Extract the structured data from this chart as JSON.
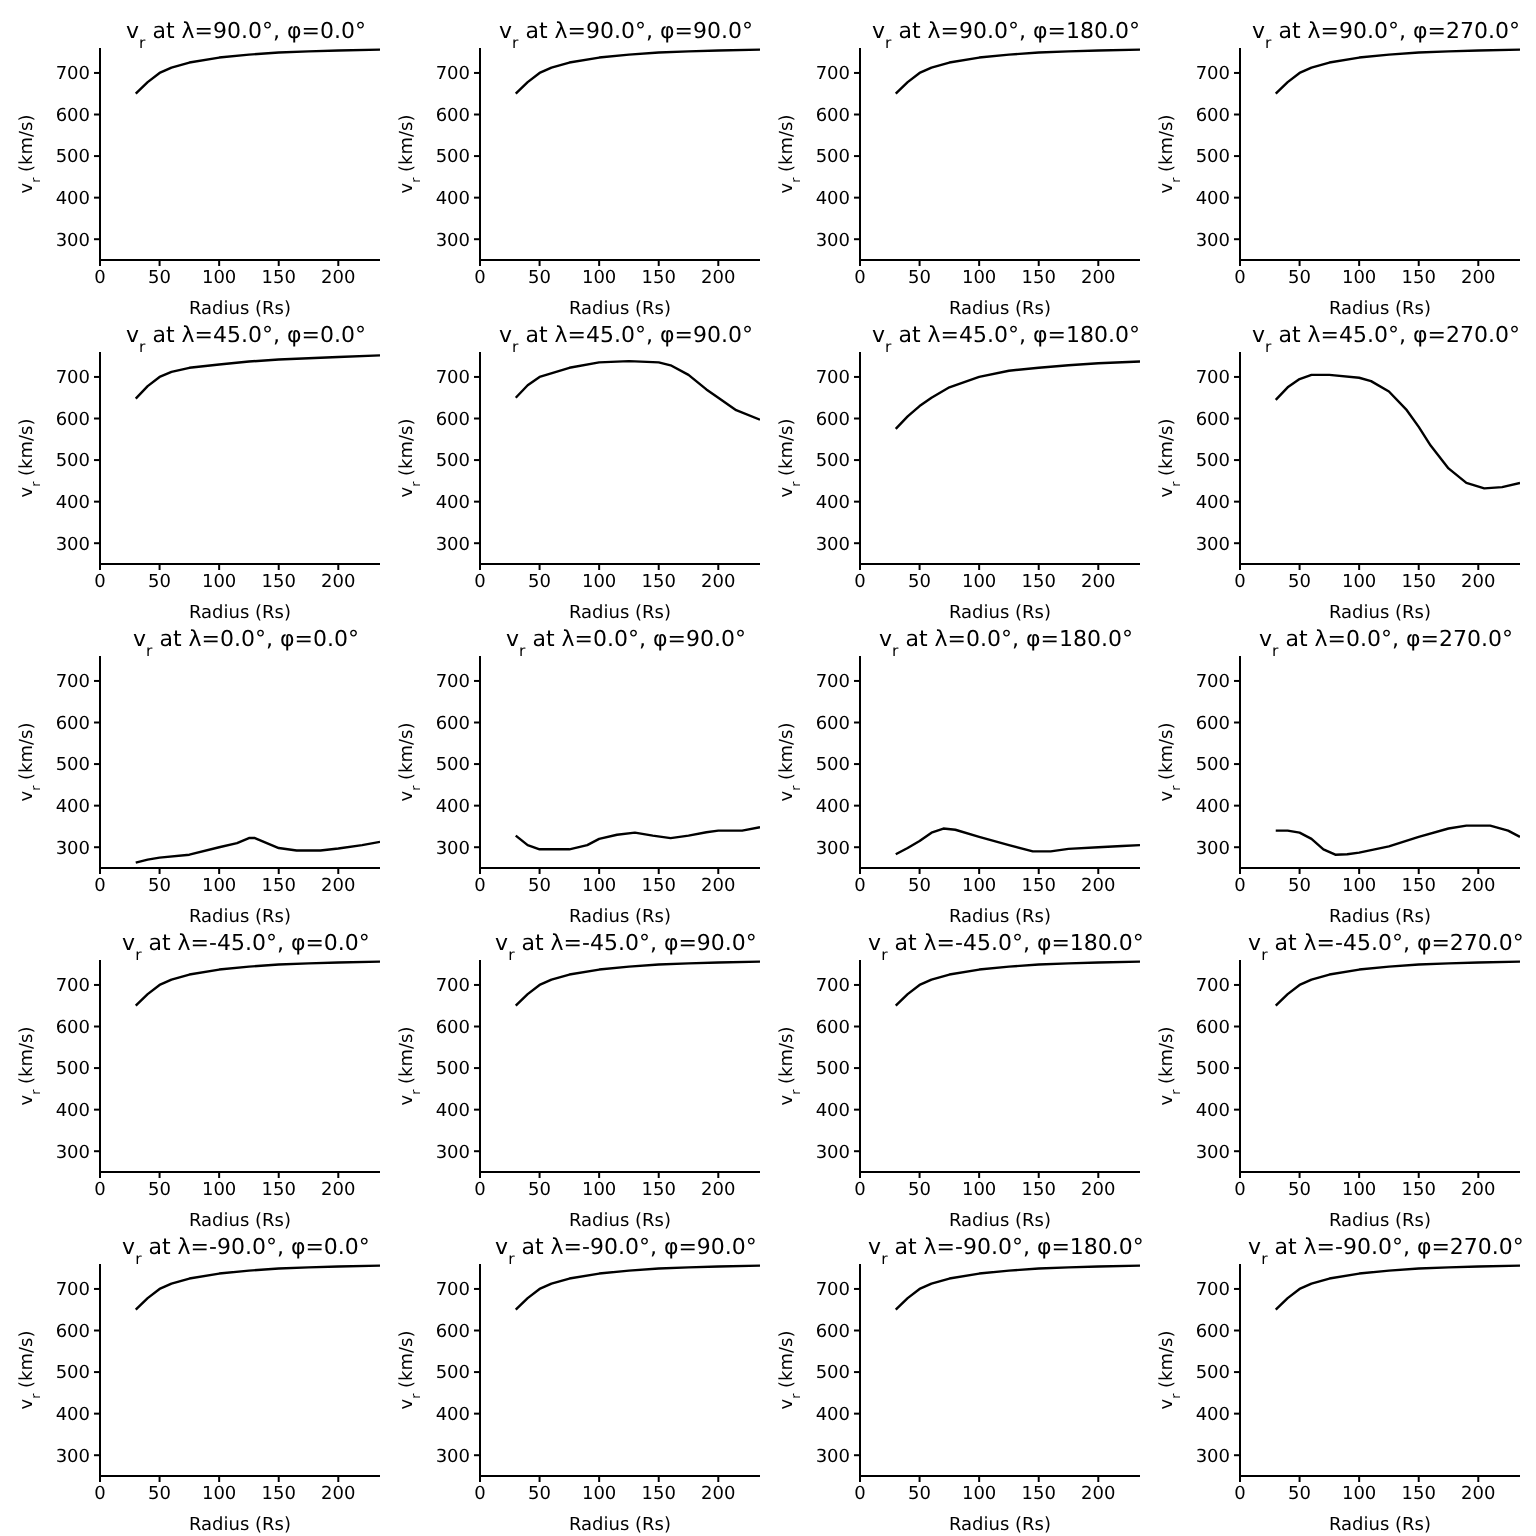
{
  "chart_data": [
    {
      "type": "line",
      "title": "v$_{r}$ at λ=90.0°, φ=0.0°",
      "xlabel": "Radius (Rs)",
      "ylabel": "v$_{r}$ (km/s)",
      "x": [
        30,
        40,
        50,
        60,
        75,
        100,
        125,
        150,
        175,
        200,
        235
      ],
      "values": [
        650,
        678,
        700,
        713,
        725,
        737,
        744,
        749,
        752,
        754,
        756
      ],
      "color": "#000000",
      "marker": "none",
      "xlim": [
        0,
        235
      ],
      "ylim": [
        250,
        760
      ],
      "xticks": [
        0,
        50,
        100,
        150,
        200
      ],
      "yticks": [
        300,
        400,
        500,
        600,
        700
      ]
    },
    {
      "type": "line",
      "title": "v$_{r}$ at λ=90.0°, φ=90.0°",
      "xlabel": "Radius (Rs)",
      "ylabel": "v$_{r}$ (km/s)",
      "x": [
        30,
        40,
        50,
        60,
        75,
        100,
        125,
        150,
        175,
        200,
        235
      ],
      "values": [
        650,
        678,
        700,
        713,
        725,
        737,
        744,
        749,
        752,
        754,
        756
      ],
      "color": "#000000",
      "marker": "none",
      "xlim": [
        0,
        235
      ],
      "ylim": [
        250,
        760
      ],
      "xticks": [
        0,
        50,
        100,
        150,
        200
      ],
      "yticks": [
        300,
        400,
        500,
        600,
        700
      ]
    },
    {
      "type": "line",
      "title": "v$_{r}$ at λ=90.0°, φ=180.0°",
      "xlabel": "Radius (Rs)",
      "ylabel": "v$_{r}$ (km/s)",
      "x": [
        30,
        40,
        50,
        60,
        75,
        100,
        125,
        150,
        175,
        200,
        235
      ],
      "values": [
        650,
        678,
        700,
        713,
        725,
        737,
        744,
        749,
        752,
        754,
        756
      ],
      "color": "#000000",
      "marker": "none",
      "xlim": [
        0,
        235
      ],
      "ylim": [
        250,
        760
      ],
      "xticks": [
        0,
        50,
        100,
        150,
        200
      ],
      "yticks": [
        300,
        400,
        500,
        600,
        700
      ]
    },
    {
      "type": "line",
      "title": "v$_{r}$ at λ=90.0°, φ=270.0°",
      "xlabel": "Radius (Rs)",
      "ylabel": "v$_{r}$ (km/s)",
      "x": [
        30,
        40,
        50,
        60,
        75,
        100,
        125,
        150,
        175,
        200,
        235
      ],
      "values": [
        650,
        678,
        700,
        713,
        725,
        737,
        744,
        749,
        752,
        754,
        756
      ],
      "color": "#000000",
      "marker": "none",
      "xlim": [
        0,
        235
      ],
      "ylim": [
        250,
        760
      ],
      "xticks": [
        0,
        50,
        100,
        150,
        200
      ],
      "yticks": [
        300,
        400,
        500,
        600,
        700
      ]
    },
    {
      "type": "line",
      "title": "v$_{r}$ at λ=45.0°, φ=0.0°",
      "xlabel": "Radius (Rs)",
      "ylabel": "v$_{r}$ (km/s)",
      "x": [
        30,
        40,
        50,
        60,
        75,
        100,
        125,
        150,
        175,
        200,
        235
      ],
      "values": [
        648,
        678,
        700,
        712,
        722,
        730,
        737,
        742,
        745,
        748,
        752
      ],
      "color": "#000000",
      "marker": "none",
      "xlim": [
        0,
        235
      ],
      "ylim": [
        250,
        760
      ],
      "xticks": [
        0,
        50,
        100,
        150,
        200
      ],
      "yticks": [
        300,
        400,
        500,
        600,
        700
      ]
    },
    {
      "type": "line",
      "title": "v$_{r}$ at λ=45.0°, φ=90.0°",
      "xlabel": "Radius (Rs)",
      "ylabel": "v$_{r}$ (km/s)",
      "x": [
        30,
        40,
        50,
        75,
        100,
        125,
        150,
        160,
        175,
        190,
        200,
        215,
        235
      ],
      "values": [
        650,
        680,
        700,
        722,
        735,
        738,
        735,
        728,
        705,
        670,
        650,
        620,
        597
      ],
      "color": "#000000",
      "marker": "none",
      "xlim": [
        0,
        235
      ],
      "ylim": [
        250,
        760
      ],
      "xticks": [
        0,
        50,
        100,
        150,
        200
      ],
      "yticks": [
        300,
        400,
        500,
        600,
        700
      ]
    },
    {
      "type": "line",
      "title": "v$_{r}$ at λ=45.0°, φ=180.0°",
      "xlabel": "Radius (Rs)",
      "ylabel": "v$_{r}$ (km/s)",
      "x": [
        30,
        40,
        50,
        60,
        75,
        100,
        125,
        150,
        175,
        200,
        235
      ],
      "values": [
        575,
        605,
        630,
        650,
        675,
        700,
        715,
        722,
        728,
        733,
        737
      ],
      "color": "#000000",
      "marker": "none",
      "xlim": [
        0,
        235
      ],
      "ylim": [
        250,
        760
      ],
      "xticks": [
        0,
        50,
        100,
        150,
        200
      ],
      "yticks": [
        300,
        400,
        500,
        600,
        700
      ]
    },
    {
      "type": "line",
      "title": "v$_{r}$ at λ=45.0°, φ=270.0°",
      "xlabel": "Radius (Rs)",
      "ylabel": "v$_{r}$ (km/s)",
      "x": [
        30,
        40,
        50,
        60,
        75,
        100,
        110,
        125,
        140,
        150,
        160,
        175,
        190,
        205,
        220,
        235
      ],
      "values": [
        645,
        675,
        695,
        705,
        705,
        698,
        690,
        665,
        620,
        580,
        535,
        480,
        445,
        432,
        435,
        445
      ],
      "color": "#000000",
      "marker": "none",
      "xlim": [
        0,
        235
      ],
      "ylim": [
        250,
        760
      ],
      "xticks": [
        0,
        50,
        100,
        150,
        200
      ],
      "yticks": [
        300,
        400,
        500,
        600,
        700
      ]
    },
    {
      "type": "line",
      "title": "v$_{r}$ at λ=0.0°, φ=0.0°",
      "xlabel": "Radius (Rs)",
      "ylabel": "v$_{r}$ (km/s)",
      "x": [
        30,
        40,
        50,
        75,
        100,
        115,
        125,
        130,
        140,
        150,
        165,
        185,
        200,
        220,
        235
      ],
      "values": [
        263,
        270,
        275,
        282,
        300,
        310,
        322,
        322,
        310,
        298,
        292,
        292,
        297,
        305,
        313
      ],
      "color": "#000000",
      "marker": "none",
      "xlim": [
        0,
        235
      ],
      "ylim": [
        250,
        760
      ],
      "xticks": [
        0,
        50,
        100,
        150,
        200
      ],
      "yticks": [
        300,
        400,
        500,
        600,
        700
      ]
    },
    {
      "type": "line",
      "title": "v$_{r}$ at λ=0.0°, φ=90.0°",
      "xlabel": "Radius (Rs)",
      "ylabel": "v$_{r}$ (km/s)",
      "x": [
        30,
        40,
        50,
        75,
        90,
        100,
        115,
        130,
        145,
        160,
        175,
        190,
        200,
        220,
        235
      ],
      "values": [
        328,
        305,
        295,
        295,
        305,
        320,
        330,
        335,
        328,
        322,
        328,
        336,
        340,
        340,
        348
      ],
      "color": "#000000",
      "marker": "none",
      "xlim": [
        0,
        235
      ],
      "ylim": [
        250,
        760
      ],
      "xticks": [
        0,
        50,
        100,
        150,
        200
      ],
      "yticks": [
        300,
        400,
        500,
        600,
        700
      ]
    },
    {
      "type": "line",
      "title": "v$_{r}$ at λ=0.0°, φ=180.0°",
      "xlabel": "Radius (Rs)",
      "ylabel": "v$_{r}$ (km/s)",
      "x": [
        30,
        40,
        50,
        60,
        70,
        80,
        100,
        125,
        145,
        160,
        175,
        200,
        220,
        235
      ],
      "values": [
        283,
        298,
        315,
        335,
        345,
        342,
        325,
        305,
        290,
        290,
        296,
        300,
        303,
        305
      ],
      "color": "#000000",
      "marker": "none",
      "xlim": [
        0,
        235
      ],
      "ylim": [
        250,
        760
      ],
      "xticks": [
        0,
        50,
        100,
        150,
        200
      ],
      "yticks": [
        300,
        400,
        500,
        600,
        700
      ]
    },
    {
      "type": "line",
      "title": "v$_{r}$ at λ=0.0°, φ=270.0°",
      "xlabel": "Radius (Rs)",
      "ylabel": "v$_{r}$ (km/s)",
      "x": [
        30,
        40,
        50,
        60,
        70,
        80,
        90,
        100,
        125,
        150,
        175,
        190,
        210,
        225,
        235
      ],
      "values": [
        340,
        340,
        335,
        320,
        295,
        282,
        283,
        287,
        302,
        325,
        345,
        352,
        352,
        340,
        325
      ],
      "color": "#000000",
      "marker": "none",
      "xlim": [
        0,
        235
      ],
      "ylim": [
        250,
        760
      ],
      "xticks": [
        0,
        50,
        100,
        150,
        200
      ],
      "yticks": [
        300,
        400,
        500,
        600,
        700
      ]
    },
    {
      "type": "line",
      "title": "v$_{r}$ at λ=-45.0°, φ=0.0°",
      "xlabel": "Radius (Rs)",
      "ylabel": "v$_{r}$ (km/s)",
      "x": [
        30,
        40,
        50,
        60,
        75,
        100,
        125,
        150,
        175,
        200,
        235
      ],
      "values": [
        650,
        678,
        700,
        713,
        725,
        737,
        744,
        749,
        752,
        754,
        756
      ],
      "color": "#000000",
      "marker": "none",
      "xlim": [
        0,
        235
      ],
      "ylim": [
        250,
        760
      ],
      "xticks": [
        0,
        50,
        100,
        150,
        200
      ],
      "yticks": [
        300,
        400,
        500,
        600,
        700
      ]
    },
    {
      "type": "line",
      "title": "v$_{r}$ at λ=-45.0°, φ=90.0°",
      "xlabel": "Radius (Rs)",
      "ylabel": "v$_{r}$ (km/s)",
      "x": [
        30,
        40,
        50,
        60,
        75,
        100,
        125,
        150,
        175,
        200,
        235
      ],
      "values": [
        650,
        678,
        700,
        713,
        725,
        737,
        744,
        749,
        752,
        754,
        756
      ],
      "color": "#000000",
      "marker": "none",
      "xlim": [
        0,
        235
      ],
      "ylim": [
        250,
        760
      ],
      "xticks": [
        0,
        50,
        100,
        150,
        200
      ],
      "yticks": [
        300,
        400,
        500,
        600,
        700
      ]
    },
    {
      "type": "line",
      "title": "v$_{r}$ at λ=-45.0°, φ=180.0°",
      "xlabel": "Radius (Rs)",
      "ylabel": "v$_{r}$ (km/s)",
      "x": [
        30,
        40,
        50,
        60,
        75,
        100,
        125,
        150,
        175,
        200,
        235
      ],
      "values": [
        650,
        678,
        700,
        713,
        725,
        737,
        744,
        749,
        752,
        754,
        756
      ],
      "color": "#000000",
      "marker": "none",
      "xlim": [
        0,
        235
      ],
      "ylim": [
        250,
        760
      ],
      "xticks": [
        0,
        50,
        100,
        150,
        200
      ],
      "yticks": [
        300,
        400,
        500,
        600,
        700
      ]
    },
    {
      "type": "line",
      "title": "v$_{r}$ at λ=-45.0°, φ=270.0°",
      "xlabel": "Radius (Rs)",
      "ylabel": "v$_{r}$ (km/s)",
      "x": [
        30,
        40,
        50,
        60,
        75,
        100,
        125,
        150,
        175,
        200,
        235
      ],
      "values": [
        650,
        678,
        700,
        713,
        725,
        737,
        744,
        749,
        752,
        754,
        756
      ],
      "color": "#000000",
      "marker": "none",
      "xlim": [
        0,
        235
      ],
      "ylim": [
        250,
        760
      ],
      "xticks": [
        0,
        50,
        100,
        150,
        200
      ],
      "yticks": [
        300,
        400,
        500,
        600,
        700
      ]
    },
    {
      "type": "line",
      "title": "v$_{r}$ at λ=-90.0°, φ=0.0°",
      "xlabel": "Radius (Rs)",
      "ylabel": "v$_{r}$ (km/s)",
      "x": [
        30,
        40,
        50,
        60,
        75,
        100,
        125,
        150,
        175,
        200,
        235
      ],
      "values": [
        650,
        678,
        700,
        713,
        725,
        737,
        744,
        749,
        752,
        754,
        756
      ],
      "color": "#000000",
      "marker": "none",
      "xlim": [
        0,
        235
      ],
      "ylim": [
        250,
        760
      ],
      "xticks": [
        0,
        50,
        100,
        150,
        200
      ],
      "yticks": [
        300,
        400,
        500,
        600,
        700
      ]
    },
    {
      "type": "line",
      "title": "v$_{r}$ at λ=-90.0°, φ=90.0°",
      "xlabel": "Radius (Rs)",
      "ylabel": "v$_{r}$ (km/s)",
      "x": [
        30,
        40,
        50,
        60,
        75,
        100,
        125,
        150,
        175,
        200,
        235
      ],
      "values": [
        650,
        678,
        700,
        713,
        725,
        737,
        744,
        749,
        752,
        754,
        756
      ],
      "color": "#000000",
      "marker": "none",
      "xlim": [
        0,
        235
      ],
      "ylim": [
        250,
        760
      ],
      "xticks": [
        0,
        50,
        100,
        150,
        200
      ],
      "yticks": [
        300,
        400,
        500,
        600,
        700
      ]
    },
    {
      "type": "line",
      "title": "v$_{r}$ at λ=-90.0°, φ=180.0°",
      "xlabel": "Radius (Rs)",
      "ylabel": "v$_{r}$ (km/s)",
      "x": [
        30,
        40,
        50,
        60,
        75,
        100,
        125,
        150,
        175,
        200,
        235
      ],
      "values": [
        650,
        678,
        700,
        713,
        725,
        737,
        744,
        749,
        752,
        754,
        756
      ],
      "color": "#000000",
      "marker": "none",
      "xlim": [
        0,
        235
      ],
      "ylim": [
        250,
        760
      ],
      "xticks": [
        0,
        50,
        100,
        150,
        200
      ],
      "yticks": [
        300,
        400,
        500,
        600,
        700
      ]
    },
    {
      "type": "line",
      "title": "v$_{r}$ at λ=-90.0°, φ=270.0°",
      "xlabel": "Radius (Rs)",
      "ylabel": "v$_{r}$ (km/s)",
      "x": [
        30,
        40,
        50,
        60,
        75,
        100,
        125,
        150,
        175,
        200,
        235
      ],
      "values": [
        650,
        678,
        700,
        713,
        725,
        737,
        744,
        749,
        752,
        754,
        756
      ],
      "color": "#000000",
      "marker": "none",
      "xlim": [
        0,
        235
      ],
      "ylim": [
        250,
        760
      ],
      "xticks": [
        0,
        50,
        100,
        150,
        200
      ],
      "yticks": [
        300,
        400,
        500,
        600,
        700
      ]
    }
  ]
}
